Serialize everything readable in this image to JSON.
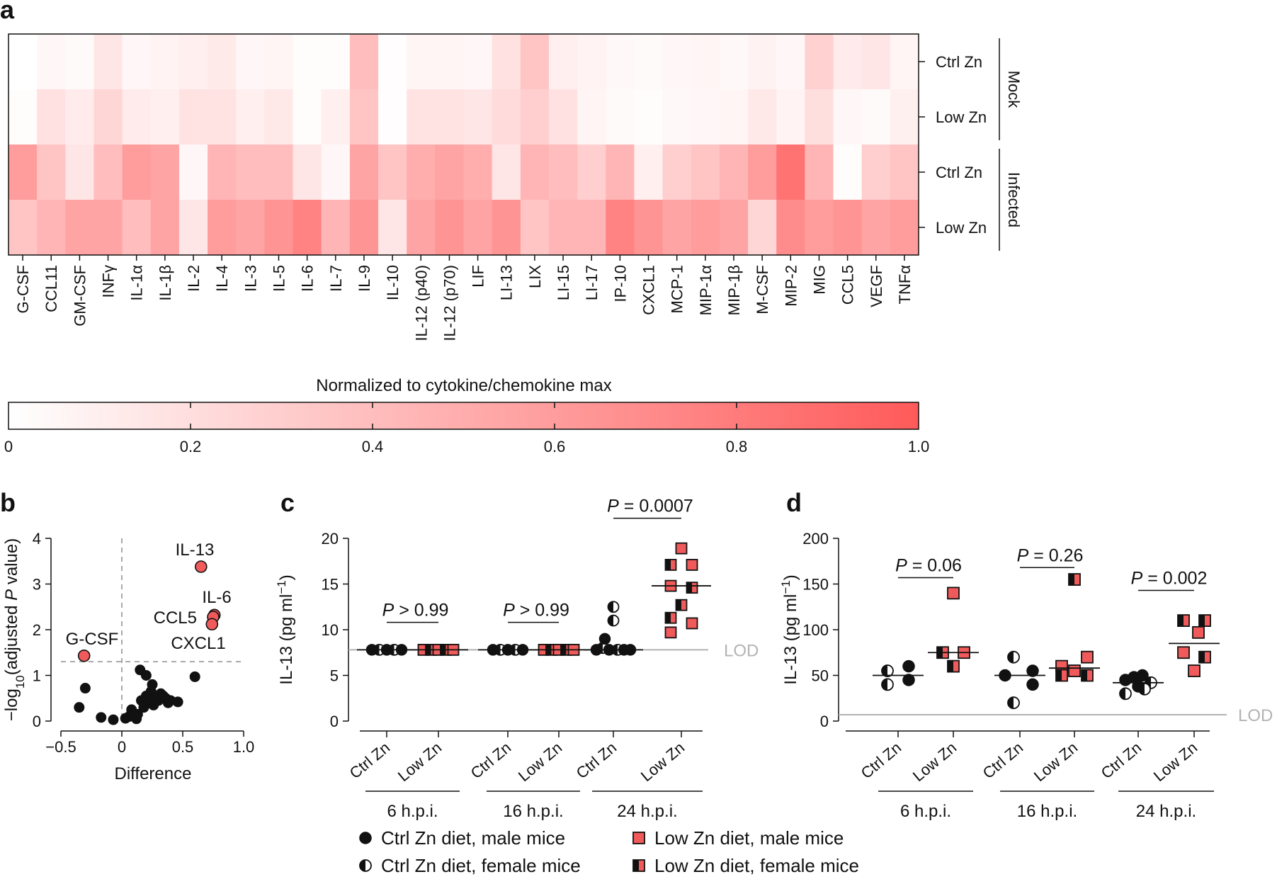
{
  "panel_labels": {
    "a": "a",
    "b": "b",
    "c": "c",
    "d": "d"
  },
  "chart_data": [
    {
      "panel": "a",
      "type": "heatmap",
      "columns": [
        "G-CSF",
        "CCL11",
        "GM-CSF",
        "INFγ",
        "IL-1α",
        "IL-1β",
        "IL-2",
        "IL-4",
        "IL-3",
        "IL-5",
        "IL-6",
        "IL-7",
        "IL-9",
        "IL-10",
        "IL-12 (p40)",
        "IL-12 (p70)",
        "LIF",
        "LI-13",
        "LIX",
        "LI-15",
        "LI-17",
        "IP-10",
        "CXCL1",
        "MCP-1",
        "MIP-1α",
        "MIP-1β",
        "M-CSF",
        "MIP-2",
        "MIG",
        "CCL5",
        "VEGF",
        "TNFα"
      ],
      "rows": [
        "Ctrl Zn",
        "Low Zn",
        "Ctrl Zn",
        "Low Zn"
      ],
      "row_groups": [
        {
          "label": "Mock",
          "rows": [
            0,
            1
          ]
        },
        {
          "label": "Infected",
          "rows": [
            2,
            3
          ]
        }
      ],
      "values": [
        [
          0.0,
          0.05,
          0.03,
          0.15,
          0.05,
          0.07,
          0.1,
          0.13,
          0.05,
          0.06,
          0.02,
          0.02,
          0.4,
          0.01,
          0.06,
          0.06,
          0.05,
          0.18,
          0.35,
          0.1,
          0.07,
          0.04,
          0.03,
          0.05,
          0.06,
          0.04,
          0.08,
          0.05,
          0.28,
          0.12,
          0.15,
          0.06
        ],
        [
          0.02,
          0.18,
          0.12,
          0.25,
          0.12,
          0.1,
          0.17,
          0.17,
          0.1,
          0.14,
          0.02,
          0.1,
          0.35,
          0.01,
          0.17,
          0.17,
          0.15,
          0.22,
          0.3,
          0.18,
          0.06,
          0.03,
          0.02,
          0.04,
          0.05,
          0.06,
          0.14,
          0.07,
          0.2,
          0.05,
          0.03,
          0.09
        ],
        [
          0.6,
          0.35,
          0.15,
          0.4,
          0.6,
          0.55,
          0.05,
          0.45,
          0.4,
          0.4,
          0.15,
          0.05,
          0.55,
          0.35,
          0.5,
          0.55,
          0.5,
          0.15,
          0.45,
          0.4,
          0.3,
          0.45,
          0.1,
          0.3,
          0.35,
          0.45,
          0.6,
          0.85,
          0.45,
          0.02,
          0.3,
          0.35
        ],
        [
          0.35,
          0.45,
          0.55,
          0.55,
          0.4,
          0.55,
          0.15,
          0.6,
          0.55,
          0.65,
          0.75,
          0.45,
          0.65,
          0.15,
          0.55,
          0.65,
          0.55,
          0.65,
          0.35,
          0.45,
          0.45,
          0.75,
          0.65,
          0.55,
          0.6,
          0.55,
          0.25,
          0.7,
          0.6,
          0.65,
          0.55,
          0.6
        ]
      ],
      "colorbar": {
        "title": "Normalized to cytokine/chemokine max",
        "ticks": [
          "0",
          "0.2",
          "0.4",
          "0.6",
          "0.8",
          "1.0"
        ],
        "range": [
          0,
          1
        ],
        "colors": [
          "#ffffff",
          "#ff5a5a"
        ]
      }
    },
    {
      "panel": "b",
      "type": "scatter",
      "xlabel": "Difference",
      "ylabel_parts": [
        "−log",
        "10",
        "(adjusted ",
        "P",
        " value)"
      ],
      "xlim": [
        -0.5,
        1.0
      ],
      "ylim": [
        0,
        4
      ],
      "xticks": [
        {
          "v": -0.5,
          "label": "−0.5"
        },
        {
          "v": 0,
          "label": "0"
        },
        {
          "v": 0.5,
          "label": "0.5"
        },
        {
          "v": 1.0,
          "label": "1.0"
        }
      ],
      "yticks": [
        {
          "v": 0,
          "label": "0"
        },
        {
          "v": 1,
          "label": "1"
        },
        {
          "v": 2,
          "label": "2"
        },
        {
          "v": 3,
          "label": "3"
        },
        {
          "v": 4,
          "label": "4"
        }
      ],
      "threshold_y": 1.3,
      "points": [
        [
          -0.35,
          0.3
        ],
        [
          -0.3,
          0.72
        ],
        [
          -0.17,
          0.08
        ],
        [
          -0.07,
          0.03
        ],
        [
          0.03,
          0.06
        ],
        [
          0.06,
          0.1
        ],
        [
          0.08,
          0.25
        ],
        [
          0.1,
          0.1
        ],
        [
          0.12,
          0.05
        ],
        [
          0.13,
          0.15
        ],
        [
          0.16,
          0.45
        ],
        [
          0.18,
          0.3
        ],
        [
          0.2,
          0.55
        ],
        [
          0.22,
          0.4
        ],
        [
          0.24,
          0.65
        ],
        [
          0.26,
          0.35
        ],
        [
          0.28,
          0.5
        ],
        [
          0.3,
          0.45
        ],
        [
          0.32,
          0.6
        ],
        [
          0.34,
          0.55
        ],
        [
          0.36,
          0.5
        ],
        [
          0.38,
          0.4
        ],
        [
          0.4,
          0.45
        ],
        [
          0.46,
          0.42
        ],
        [
          0.6,
          0.97
        ],
        [
          0.15,
          1.12
        ],
        [
          0.2,
          1.0
        ],
        [
          0.25,
          0.8
        ]
      ],
      "highlighted": [
        {
          "label": "IL-13",
          "x": 0.65,
          "y": 3.38
        },
        {
          "label": "IL-6",
          "x": 0.76,
          "y": 2.32
        },
        {
          "label": "CCL5",
          "x": 0.75,
          "y": 2.28
        },
        {
          "label": "CXCL1",
          "x": 0.74,
          "y": 2.12
        },
        {
          "label": "G-CSF",
          "x": -0.31,
          "y": 1.43
        }
      ]
    },
    {
      "panel": "c",
      "type": "scatter",
      "ylabel_parts": [
        "IL-13 (pg ml",
        "−1",
        ")"
      ],
      "ylim": [
        0,
        20
      ],
      "yticks": [
        0,
        5,
        10,
        15,
        20
      ],
      "lod": {
        "value": 7.8,
        "label": "LOD"
      },
      "groups": [
        {
          "label": "Ctrl Zn",
          "time": "6 h.p.i.",
          "diet": "ctrl",
          "median": 7.8,
          "points": [
            [
              -0.7,
              7.8,
              "m"
            ],
            [
              -0.35,
              7.8,
              "f"
            ],
            [
              0,
              7.8,
              "m"
            ],
            [
              0.35,
              7.8,
              "f"
            ],
            [
              0.7,
              7.8,
              "m"
            ]
          ]
        },
        {
          "label": "Low Zn",
          "time": "6 h.p.i.",
          "diet": "low",
          "median": 7.8,
          "points": [
            [
              -0.7,
              7.8,
              "m"
            ],
            [
              -0.35,
              7.8,
              "f"
            ],
            [
              0,
              7.8,
              "m"
            ],
            [
              0.35,
              7.8,
              "f"
            ],
            [
              0.7,
              7.8,
              "m"
            ]
          ]
        },
        {
          "label": "Ctrl Zn",
          "time": "16 h.p.i.",
          "diet": "ctrl",
          "median": 7.8,
          "points": [
            [
              -0.7,
              7.8,
              "m"
            ],
            [
              -0.35,
              7.8,
              "f"
            ],
            [
              0,
              7.8,
              "m"
            ],
            [
              0.35,
              7.8,
              "f"
            ],
            [
              0.7,
              7.8,
              "m"
            ]
          ]
        },
        {
          "label": "Low Zn",
          "time": "16 h.p.i.",
          "diet": "low",
          "median": 7.8,
          "points": [
            [
              -0.7,
              7.8,
              "m"
            ],
            [
              -0.35,
              7.8,
              "f"
            ],
            [
              0,
              7.8,
              "m"
            ],
            [
              0.35,
              7.8,
              "f"
            ],
            [
              0.7,
              7.8,
              "m"
            ]
          ]
        },
        {
          "label": "Ctrl Zn",
          "time": "24 h.p.i.",
          "diet": "ctrl",
          "median": 7.8,
          "points": [
            [
              -0.8,
              7.8,
              "m"
            ],
            [
              -0.5,
              8.0,
              "f"
            ],
            [
              -0.2,
              7.8,
              "m"
            ],
            [
              0.2,
              7.8,
              "f"
            ],
            [
              0.5,
              7.8,
              "m"
            ],
            [
              0.8,
              7.8,
              "m"
            ],
            [
              -0.4,
              9.0,
              "m"
            ],
            [
              0.0,
              11.0,
              "f"
            ],
            [
              0.0,
              12.5,
              "f"
            ]
          ]
        },
        {
          "label": "Low Zn",
          "time": "24 h.p.i.",
          "diet": "low",
          "median": 14.8,
          "points": [
            [
              0,
              18.9,
              "m"
            ],
            [
              -0.5,
              17.1,
              "f"
            ],
            [
              0.5,
              17.1,
              "m"
            ],
            [
              -0.5,
              14.8,
              "m"
            ],
            [
              0.5,
              14.6,
              "f"
            ],
            [
              0,
              12.7,
              "f"
            ],
            [
              -0.5,
              11.3,
              "f"
            ],
            [
              -0.5,
              9.7,
              "m"
            ],
            [
              0.5,
              10.7,
              "m"
            ]
          ]
        }
      ],
      "time_labels": [
        "6 h.p.i.",
        "16 h.p.i.",
        "24 h.p.i."
      ],
      "comparisons": [
        {
          "pair": [
            0,
            1
          ],
          "y": 10.8,
          "text_parts": [
            "P",
            " > 0.99"
          ]
        },
        {
          "pair": [
            2,
            3
          ],
          "y": 10.8,
          "text_parts": [
            "P",
            " > 0.99"
          ]
        },
        {
          "pair": [
            4,
            5
          ],
          "y": 22.2,
          "text_parts": [
            "P",
            " = 0.0007"
          ]
        }
      ]
    },
    {
      "panel": "d",
      "type": "scatter",
      "ylabel_parts": [
        "IL-13 (pg ml",
        "−1",
        ")"
      ],
      "ylim": [
        0,
        200
      ],
      "yticks": [
        0,
        50,
        100,
        150,
        200
      ],
      "lod": {
        "value": 7,
        "label": "LOD"
      },
      "groups": [
        {
          "label": "Ctrl Zn",
          "time": "6 h.p.i.",
          "diet": "ctrl",
          "median": 50,
          "points": [
            [
              -0.5,
              55,
              "f"
            ],
            [
              0.5,
              60,
              "m"
            ],
            [
              -0.5,
              40,
              "f"
            ],
            [
              0.5,
              45,
              "m"
            ]
          ]
        },
        {
          "label": "Low Zn",
          "time": "6 h.p.i.",
          "diet": "low",
          "median": 75,
          "points": [
            [
              0,
              140,
              "m"
            ],
            [
              -0.5,
              75,
              "f"
            ],
            [
              0.5,
              75,
              "m"
            ],
            [
              0,
              60,
              "f"
            ]
          ]
        },
        {
          "label": "Ctrl Zn",
          "time": "16 h.p.i.",
          "diet": "ctrl",
          "median": 50,
          "points": [
            [
              -0.3,
              70,
              "f"
            ],
            [
              0.6,
              55,
              "m"
            ],
            [
              -0.7,
              50,
              "m"
            ],
            [
              0.6,
              40,
              "m"
            ],
            [
              -0.3,
              20,
              "f"
            ]
          ]
        },
        {
          "label": "Low Zn",
          "time": "16 h.p.i.",
          "diet": "low",
          "median": 58,
          "points": [
            [
              0,
              155,
              "f"
            ],
            [
              0.6,
              70,
              "m"
            ],
            [
              -0.6,
              60,
              "m"
            ],
            [
              0,
              55,
              "m"
            ],
            [
              -0.6,
              50,
              "f"
            ],
            [
              0.6,
              50,
              "f"
            ]
          ]
        },
        {
          "label": "Ctrl Zn",
          "time": "24 h.p.i.",
          "diet": "ctrl",
          "median": 42,
          "points": [
            [
              -0.6,
              45,
              "m"
            ],
            [
              -0.2,
              48,
              "m"
            ],
            [
              0.2,
              50,
              "m"
            ],
            [
              0.6,
              42,
              "f"
            ],
            [
              -0.6,
              30,
              "f"
            ],
            [
              0,
              38,
              "m"
            ],
            [
              0.3,
              35,
              "f"
            ]
          ]
        },
        {
          "label": "Low Zn",
          "time": "24 h.p.i.",
          "diet": "low",
          "median": 85,
          "points": [
            [
              -0.5,
              110,
              "f"
            ],
            [
              0.5,
              110,
              "f"
            ],
            [
              0.2,
              97,
              "m"
            ],
            [
              -0.5,
              75,
              "m"
            ],
            [
              0.5,
              70,
              "f"
            ],
            [
              0,
              55,
              "m"
            ]
          ]
        }
      ],
      "time_labels": [
        "6 h.p.i.",
        "16 h.p.i.",
        "24 h.p.i."
      ],
      "comparisons": [
        {
          "pair": [
            0,
            1
          ],
          "y": 157,
          "text_parts": [
            "P",
            " = 0.06"
          ]
        },
        {
          "pair": [
            2,
            3
          ],
          "y": 168,
          "text_parts": [
            "P",
            " = 0.26"
          ]
        },
        {
          "pair": [
            4,
            5
          ],
          "y": 143,
          "text_parts": [
            "P",
            " = 0.002"
          ]
        }
      ]
    }
  ],
  "legend": [
    {
      "label": "Ctrl Zn diet, male mice",
      "shape": "circle",
      "fill": "full"
    },
    {
      "label": "Low Zn diet, male mice",
      "shape": "square",
      "fill": "full"
    },
    {
      "label": "Ctrl Zn diet, female mice",
      "shape": "circle",
      "fill": "half"
    },
    {
      "label": "Low Zn diet, female mice",
      "shape": "square",
      "fill": "half"
    }
  ],
  "colors": {
    "dark": "#111111",
    "red": "#f05a5a",
    "grey_line": "#b3b3b3",
    "dash": "#a9a9a9"
  }
}
